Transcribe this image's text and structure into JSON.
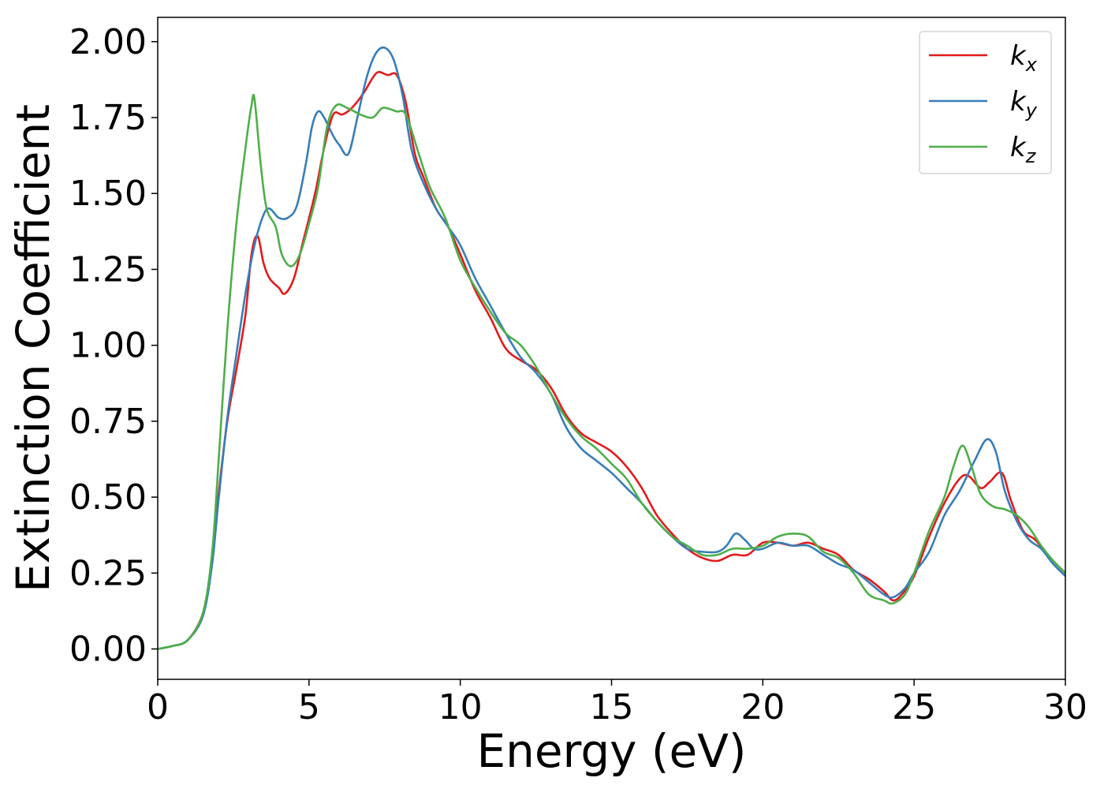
{
  "chart_data": {
    "type": "line",
    "title": "",
    "xlabel": "Energy (eV)",
    "ylabel": "Extinction Coefficient",
    "xlim": [
      0,
      30
    ],
    "ylim": [
      -0.1,
      2.08
    ],
    "x_ticks": [
      0,
      5,
      10,
      15,
      20,
      25,
      30
    ],
    "x_tick_labels": [
      "0",
      "5",
      "10",
      "15",
      "20",
      "25",
      "30"
    ],
    "y_ticks": [
      0,
      0.25,
      0.5,
      0.75,
      1.0,
      1.25,
      1.5,
      1.75,
      2.0
    ],
    "y_tick_labels": [
      "0.00",
      "0.25",
      "0.50",
      "0.75",
      "1.00",
      "1.25",
      "1.50",
      "1.75",
      "2.00"
    ],
    "grid": false,
    "legend_position": "top-right",
    "series": [
      {
        "name": "k",
        "subscript": "x",
        "color": "#e41a1c",
        "points": [
          [
            0,
            0
          ],
          [
            0.5,
            0.01
          ],
          [
            1.0,
            0.03
          ],
          [
            1.5,
            0.12
          ],
          [
            1.8,
            0.3
          ],
          [
            2.0,
            0.5
          ],
          [
            2.3,
            0.75
          ],
          [
            2.6,
            0.92
          ],
          [
            2.9,
            1.1
          ],
          [
            3.1,
            1.3
          ],
          [
            3.3,
            1.36
          ],
          [
            3.5,
            1.27
          ],
          [
            3.7,
            1.22
          ],
          [
            4.0,
            1.19
          ],
          [
            4.2,
            1.17
          ],
          [
            4.5,
            1.22
          ],
          [
            4.8,
            1.34
          ],
          [
            5.2,
            1.5
          ],
          [
            5.5,
            1.65
          ],
          [
            5.8,
            1.76
          ],
          [
            6.1,
            1.76
          ],
          [
            6.4,
            1.78
          ],
          [
            6.8,
            1.83
          ],
          [
            7.1,
            1.88
          ],
          [
            7.3,
            1.9
          ],
          [
            7.6,
            1.89
          ],
          [
            7.9,
            1.89
          ],
          [
            8.2,
            1.8
          ],
          [
            8.5,
            1.63
          ],
          [
            8.8,
            1.55
          ],
          [
            9.2,
            1.45
          ],
          [
            9.6,
            1.39
          ],
          [
            10.0,
            1.3
          ],
          [
            10.5,
            1.18
          ],
          [
            11.0,
            1.09
          ],
          [
            11.5,
            0.99
          ],
          [
            12.0,
            0.95
          ],
          [
            12.5,
            0.92
          ],
          [
            13.0,
            0.86
          ],
          [
            13.5,
            0.77
          ],
          [
            14.0,
            0.71
          ],
          [
            14.5,
            0.68
          ],
          [
            15.0,
            0.65
          ],
          [
            15.5,
            0.6
          ],
          [
            16.0,
            0.53
          ],
          [
            16.5,
            0.44
          ],
          [
            17.0,
            0.38
          ],
          [
            17.5,
            0.33
          ],
          [
            18.0,
            0.3
          ],
          [
            18.5,
            0.29
          ],
          [
            19.0,
            0.31
          ],
          [
            19.5,
            0.31
          ],
          [
            20.0,
            0.35
          ],
          [
            20.5,
            0.35
          ],
          [
            21.0,
            0.34
          ],
          [
            21.5,
            0.35
          ],
          [
            22.0,
            0.33
          ],
          [
            22.5,
            0.31
          ],
          [
            23.0,
            0.26
          ],
          [
            23.5,
            0.23
          ],
          [
            24.0,
            0.19
          ],
          [
            24.3,
            0.16
          ],
          [
            24.6,
            0.18
          ],
          [
            25.0,
            0.24
          ],
          [
            25.5,
            0.37
          ],
          [
            26.0,
            0.48
          ],
          [
            26.5,
            0.56
          ],
          [
            26.8,
            0.57
          ],
          [
            27.2,
            0.53
          ],
          [
            27.5,
            0.55
          ],
          [
            27.9,
            0.58
          ],
          [
            28.2,
            0.49
          ],
          [
            28.6,
            0.39
          ],
          [
            29.0,
            0.36
          ],
          [
            29.5,
            0.3
          ],
          [
            30.0,
            0.25
          ]
        ]
      },
      {
        "name": "k",
        "subscript": "y",
        "color": "#377eb8",
        "points": [
          [
            0,
            0
          ],
          [
            0.5,
            0.01
          ],
          [
            1.0,
            0.03
          ],
          [
            1.5,
            0.11
          ],
          [
            1.8,
            0.28
          ],
          [
            2.0,
            0.48
          ],
          [
            2.3,
            0.76
          ],
          [
            2.6,
            0.97
          ],
          [
            2.9,
            1.17
          ],
          [
            3.2,
            1.33
          ],
          [
            3.5,
            1.43
          ],
          [
            3.7,
            1.45
          ],
          [
            4.0,
            1.42
          ],
          [
            4.3,
            1.42
          ],
          [
            4.6,
            1.46
          ],
          [
            4.9,
            1.6
          ],
          [
            5.1,
            1.72
          ],
          [
            5.3,
            1.77
          ],
          [
            5.5,
            1.75
          ],
          [
            5.8,
            1.69
          ],
          [
            6.0,
            1.66
          ],
          [
            6.3,
            1.63
          ],
          [
            6.6,
            1.75
          ],
          [
            6.9,
            1.88
          ],
          [
            7.2,
            1.96
          ],
          [
            7.5,
            1.98
          ],
          [
            7.8,
            1.94
          ],
          [
            8.1,
            1.82
          ],
          [
            8.4,
            1.64
          ],
          [
            8.8,
            1.53
          ],
          [
            9.2,
            1.45
          ],
          [
            9.6,
            1.39
          ],
          [
            10.0,
            1.33
          ],
          [
            10.5,
            1.22
          ],
          [
            11.0,
            1.13
          ],
          [
            11.5,
            1.04
          ],
          [
            12.0,
            0.96
          ],
          [
            12.5,
            0.91
          ],
          [
            13.0,
            0.84
          ],
          [
            13.5,
            0.73
          ],
          [
            14.0,
            0.66
          ],
          [
            14.5,
            0.62
          ],
          [
            15.0,
            0.58
          ],
          [
            15.5,
            0.53
          ],
          [
            16.0,
            0.48
          ],
          [
            16.5,
            0.42
          ],
          [
            17.0,
            0.37
          ],
          [
            17.5,
            0.33
          ],
          [
            18.0,
            0.32
          ],
          [
            18.5,
            0.32
          ],
          [
            18.8,
            0.34
          ],
          [
            19.1,
            0.38
          ],
          [
            19.4,
            0.36
          ],
          [
            19.7,
            0.33
          ],
          [
            20.0,
            0.33
          ],
          [
            20.5,
            0.35
          ],
          [
            21.0,
            0.34
          ],
          [
            21.5,
            0.34
          ],
          [
            22.0,
            0.31
          ],
          [
            22.5,
            0.28
          ],
          [
            23.0,
            0.26
          ],
          [
            23.5,
            0.22
          ],
          [
            24.0,
            0.18
          ],
          [
            24.3,
            0.17
          ],
          [
            24.7,
            0.2
          ],
          [
            25.0,
            0.25
          ],
          [
            25.5,
            0.32
          ],
          [
            26.0,
            0.44
          ],
          [
            26.5,
            0.52
          ],
          [
            27.0,
            0.62
          ],
          [
            27.4,
            0.69
          ],
          [
            27.7,
            0.65
          ],
          [
            28.0,
            0.52
          ],
          [
            28.4,
            0.42
          ],
          [
            28.8,
            0.36
          ],
          [
            29.2,
            0.33
          ],
          [
            29.6,
            0.28
          ],
          [
            30.0,
            0.24
          ]
        ]
      },
      {
        "name": "k",
        "subscript": "z",
        "color": "#4daf4a",
        "points": [
          [
            0,
            0
          ],
          [
            0.5,
            0.01
          ],
          [
            1.0,
            0.03
          ],
          [
            1.5,
            0.12
          ],
          [
            1.8,
            0.32
          ],
          [
            2.0,
            0.6
          ],
          [
            2.3,
            1.05
          ],
          [
            2.6,
            1.4
          ],
          [
            2.9,
            1.65
          ],
          [
            3.1,
            1.79
          ],
          [
            3.2,
            1.81
          ],
          [
            3.4,
            1.6
          ],
          [
            3.6,
            1.45
          ],
          [
            3.9,
            1.39
          ],
          [
            4.1,
            1.3
          ],
          [
            4.4,
            1.26
          ],
          [
            4.7,
            1.3
          ],
          [
            5.0,
            1.4
          ],
          [
            5.3,
            1.52
          ],
          [
            5.6,
            1.72
          ],
          [
            5.9,
            1.79
          ],
          [
            6.3,
            1.78
          ],
          [
            6.7,
            1.76
          ],
          [
            7.1,
            1.75
          ],
          [
            7.4,
            1.78
          ],
          [
            7.6,
            1.78
          ],
          [
            7.9,
            1.77
          ],
          [
            8.2,
            1.76
          ],
          [
            8.6,
            1.64
          ],
          [
            9.0,
            1.52
          ],
          [
            9.5,
            1.42
          ],
          [
            10.0,
            1.28
          ],
          [
            10.5,
            1.19
          ],
          [
            11.0,
            1.11
          ],
          [
            11.5,
            1.04
          ],
          [
            12.0,
            1.0
          ],
          [
            12.5,
            0.93
          ],
          [
            13.0,
            0.84
          ],
          [
            13.5,
            0.76
          ],
          [
            14.0,
            0.7
          ],
          [
            14.5,
            0.66
          ],
          [
            15.0,
            0.61
          ],
          [
            15.5,
            0.56
          ],
          [
            16.0,
            0.48
          ],
          [
            16.5,
            0.42
          ],
          [
            17.0,
            0.37
          ],
          [
            17.5,
            0.34
          ],
          [
            18.0,
            0.31
          ],
          [
            18.5,
            0.31
          ],
          [
            19.0,
            0.33
          ],
          [
            19.5,
            0.33
          ],
          [
            20.0,
            0.34
          ],
          [
            20.5,
            0.37
          ],
          [
            21.0,
            0.38
          ],
          [
            21.5,
            0.37
          ],
          [
            22.0,
            0.32
          ],
          [
            22.5,
            0.3
          ],
          [
            23.0,
            0.25
          ],
          [
            23.5,
            0.18
          ],
          [
            24.0,
            0.16
          ],
          [
            24.3,
            0.15
          ],
          [
            24.7,
            0.18
          ],
          [
            25.0,
            0.25
          ],
          [
            25.5,
            0.39
          ],
          [
            26.0,
            0.5
          ],
          [
            26.3,
            0.6
          ],
          [
            26.6,
            0.67
          ],
          [
            26.9,
            0.6
          ],
          [
            27.2,
            0.51
          ],
          [
            27.6,
            0.47
          ],
          [
            28.0,
            0.46
          ],
          [
            28.4,
            0.44
          ],
          [
            28.8,
            0.4
          ],
          [
            29.2,
            0.34
          ],
          [
            29.6,
            0.29
          ],
          [
            30.0,
            0.25
          ]
        ]
      }
    ]
  }
}
